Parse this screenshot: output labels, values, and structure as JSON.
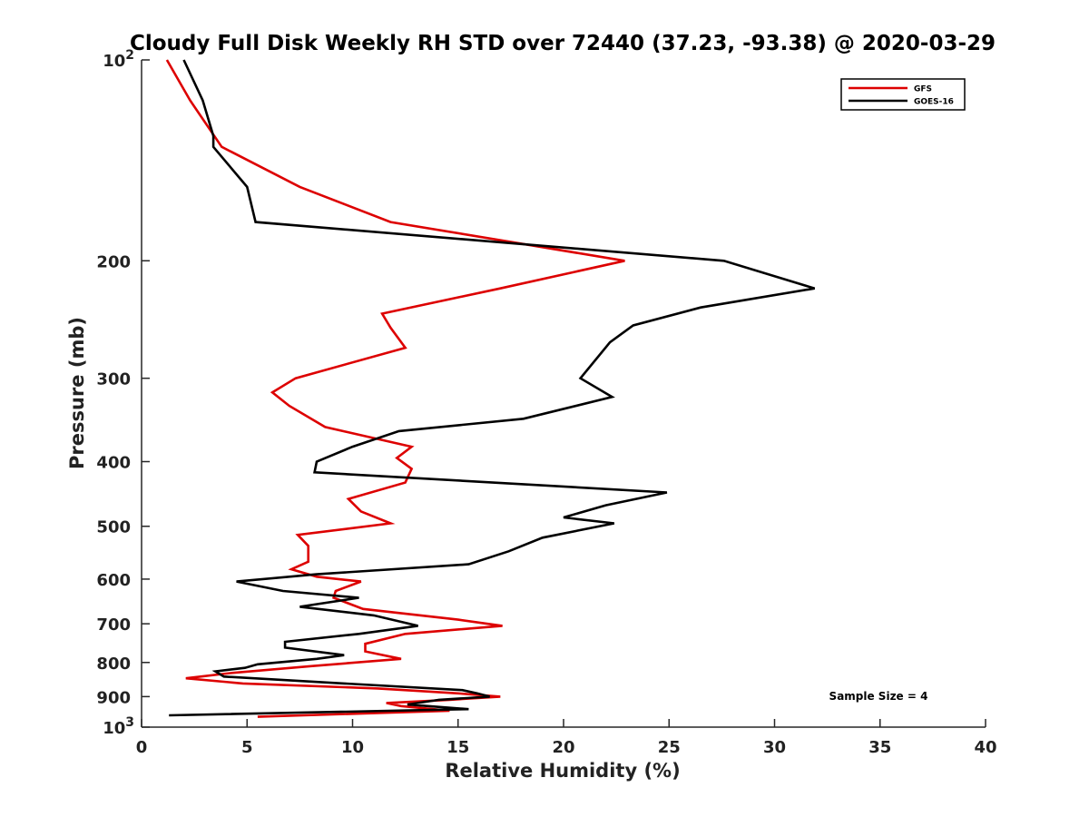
{
  "chart_data": {
    "type": "line",
    "title": "Cloudy Full Disk Weekly RH STD over 72440 (37.23, -93.38) @ 2020-03-29",
    "xlabel": "Relative Humidity (%)",
    "ylabel": "Pressure (mb)",
    "xlim": [
      0,
      40
    ],
    "ylim": [
      100,
      1000
    ],
    "yscale": "log",
    "y_reversed": false,
    "x_ticks": [
      "0",
      "5",
      "10",
      "15",
      "20",
      "25",
      "30",
      "35",
      "40"
    ],
    "y_ticks": [
      {
        "value": 100,
        "base": "10",
        "exp": "2"
      },
      {
        "value": 200,
        "label": "200"
      },
      {
        "value": 300,
        "label": "300"
      },
      {
        "value": 400,
        "label": "400"
      },
      {
        "value": 500,
        "label": "500"
      },
      {
        "value": 600,
        "label": "600"
      },
      {
        "value": 700,
        "label": "700"
      },
      {
        "value": 800,
        "label": "800"
      },
      {
        "value": 900,
        "label": "900"
      },
      {
        "value": 1000,
        "base": "10",
        "exp": "3"
      }
    ],
    "grid": false,
    "legend_position": "top-right",
    "annotation": "Sample Size = 4",
    "series": [
      {
        "name": "GFS",
        "color": "#dd0000",
        "points": [
          [
            1.2,
            100
          ],
          [
            2.3,
            115
          ],
          [
            3.8,
            135
          ],
          [
            7.5,
            155
          ],
          [
            11.8,
            175
          ],
          [
            22.9,
            200
          ],
          [
            17,
            220
          ],
          [
            11.4,
            240
          ],
          [
            11.8,
            252
          ],
          [
            12.5,
            270
          ],
          [
            7.3,
            300
          ],
          [
            6.2,
            315
          ],
          [
            7,
            330
          ],
          [
            8.7,
            355
          ],
          [
            12.8,
            380
          ],
          [
            12.1,
            395
          ],
          [
            12.8,
            410
          ],
          [
            12.5,
            430
          ],
          [
            9.8,
            455
          ],
          [
            10.4,
            475
          ],
          [
            11.8,
            495
          ],
          [
            7.4,
            515
          ],
          [
            7.9,
            535
          ],
          [
            7.9,
            565
          ],
          [
            7.1,
            580
          ],
          [
            8.3,
            595
          ],
          [
            10.4,
            605
          ],
          [
            9.2,
            625
          ],
          [
            9.1,
            640
          ],
          [
            10.5,
            665
          ],
          [
            15,
            690
          ],
          [
            17.1,
            705
          ],
          [
            12.5,
            725
          ],
          [
            10.6,
            750
          ],
          [
            10.6,
            770
          ],
          [
            12.3,
            790
          ],
          [
            8.1,
            810
          ],
          [
            4.2,
            830
          ],
          [
            2.1,
            845
          ],
          [
            4.8,
            860
          ],
          [
            11.2,
            875
          ],
          [
            15,
            890
          ],
          [
            17,
            900
          ],
          [
            14.6,
            910
          ],
          [
            11.6,
            920
          ],
          [
            12.3,
            930
          ],
          [
            14.6,
            945
          ],
          [
            5.5,
            965
          ]
        ]
      },
      {
        "name": "GOES-16",
        "color": "#000000",
        "points": [
          [
            2,
            100
          ],
          [
            2.9,
            115
          ],
          [
            3.4,
            130
          ],
          [
            3.4,
            135
          ],
          [
            5,
            155
          ],
          [
            5.4,
            175
          ],
          [
            27.6,
            200
          ],
          [
            31.9,
            220
          ],
          [
            26.5,
            235
          ],
          [
            23.3,
            250
          ],
          [
            22.2,
            265
          ],
          [
            20.8,
            300
          ],
          [
            22.3,
            320
          ],
          [
            18.1,
            345
          ],
          [
            12.2,
            360
          ],
          [
            10,
            380
          ],
          [
            8.3,
            400
          ],
          [
            8.2,
            415
          ],
          [
            24.9,
            445
          ],
          [
            22,
            465
          ],
          [
            20,
            485
          ],
          [
            22.4,
            495
          ],
          [
            19,
            520
          ],
          [
            17.4,
            545
          ],
          [
            15.5,
            570
          ],
          [
            8.3,
            590
          ],
          [
            4.5,
            605
          ],
          [
            6.7,
            625
          ],
          [
            10.3,
            640
          ],
          [
            7.5,
            660
          ],
          [
            11,
            680
          ],
          [
            13.1,
            705
          ],
          [
            10.3,
            725
          ],
          [
            6.8,
            745
          ],
          [
            6.8,
            760
          ],
          [
            9.6,
            780
          ],
          [
            8.3,
            790
          ],
          [
            5.5,
            805
          ],
          [
            4.9,
            815
          ],
          [
            3.5,
            825
          ],
          [
            3.9,
            840
          ],
          [
            9.6,
            860
          ],
          [
            15.2,
            880
          ],
          [
            15.9,
            890
          ],
          [
            16.5,
            900
          ],
          [
            14.1,
            910
          ],
          [
            12.6,
            925
          ],
          [
            15.5,
            940
          ],
          [
            1.3,
            960
          ]
        ]
      }
    ]
  }
}
